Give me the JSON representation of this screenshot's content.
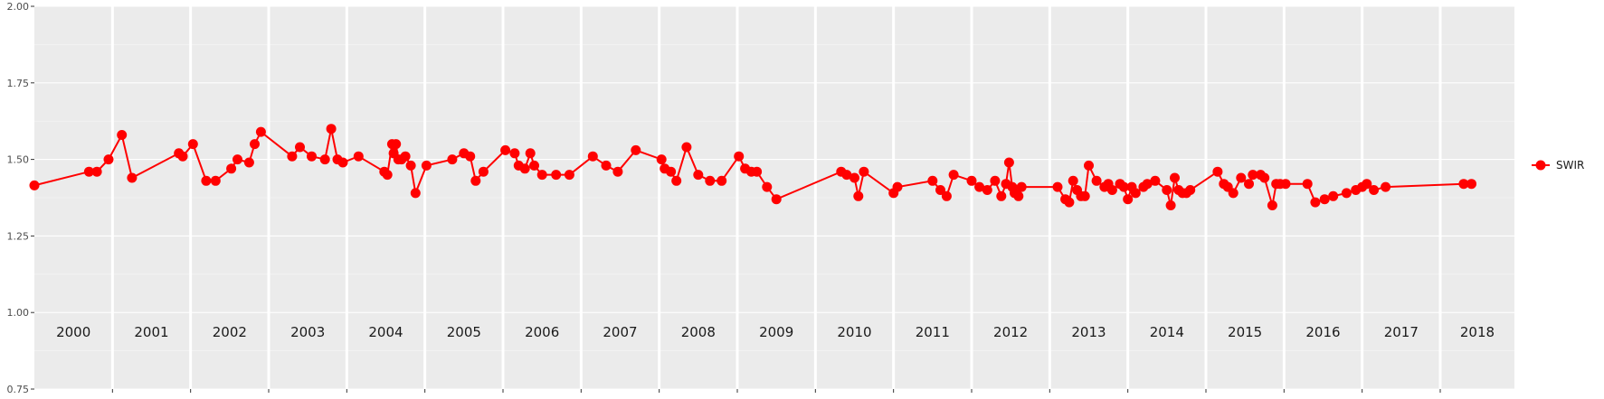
{
  "chart_data": {
    "type": "line",
    "title": "",
    "xlabel": "",
    "ylabel": "",
    "ylim": [
      0.75,
      2.0
    ],
    "xlim": [
      2000.0,
      2018.95
    ],
    "y_ticks": [
      "0.75",
      "1.00",
      "1.25",
      "1.50",
      "1.75",
      "2.00"
    ],
    "year_labels": [
      "2000",
      "2001",
      "2002",
      "2003",
      "2004",
      "2005",
      "2006",
      "2007",
      "2008",
      "2009",
      "2010",
      "2011",
      "2012",
      "2013",
      "2014",
      "2015",
      "2016",
      "2017",
      "2018"
    ],
    "grid": true,
    "legend_position": "right",
    "series": [
      {
        "name": "SWIR",
        "color": "#ff0000",
        "x": [
          2000.0,
          2000.7,
          2000.8,
          2000.95,
          2001.12,
          2001.25,
          2001.85,
          2001.9,
          2002.03,
          2002.2,
          2002.32,
          2002.52,
          2002.6,
          2002.75,
          2002.82,
          2002.9,
          2003.3,
          2003.4,
          2003.55,
          2003.72,
          2003.8,
          2003.88,
          2003.95,
          2004.15,
          2004.48,
          2004.52,
          2004.58,
          2004.6,
          2004.63,
          2004.66,
          2004.7,
          2004.75,
          2004.82,
          2004.88,
          2005.02,
          2005.35,
          2005.5,
          2005.58,
          2005.65,
          2005.75,
          2006.03,
          2006.15,
          2006.2,
          2006.28,
          2006.35,
          2006.4,
          2006.5,
          2006.68,
          2006.85,
          2007.15,
          2007.32,
          2007.47,
          2007.7,
          2008.03,
          2008.07,
          2008.15,
          2008.22,
          2008.35,
          2008.5,
          2008.65,
          2008.8,
          2009.02,
          2009.1,
          2009.18,
          2009.25,
          2009.38,
          2009.5,
          2010.33,
          2010.4,
          2010.5,
          2010.55,
          2010.62,
          2011.0,
          2011.05,
          2011.5,
          2011.6,
          2011.68,
          2011.77,
          2012.0,
          2012.1,
          2012.2,
          2012.3,
          2012.38,
          2012.44,
          2012.48,
          2012.52,
          2012.55,
          2012.6,
          2012.64,
          2013.1,
          2013.2,
          2013.25,
          2013.3,
          2013.35,
          2013.4,
          2013.45,
          2013.5,
          2013.6,
          2013.7,
          2013.75,
          2013.8,
          2013.9,
          2013.95,
          2014.0,
          2014.05,
          2014.1,
          2014.2,
          2014.25,
          2014.35,
          2014.5,
          2014.55,
          2014.6,
          2014.65,
          2014.7,
          2014.75,
          2014.8,
          2015.15,
          2015.23,
          2015.28,
          2015.35,
          2015.45,
          2015.55,
          2015.6,
          2015.7,
          2015.75,
          2015.85,
          2015.9,
          2015.95,
          2016.02,
          2016.3,
          2016.4,
          2016.52,
          2016.63,
          2016.8,
          2016.92,
          2017.0,
          2017.06,
          2017.15,
          2017.3,
          2018.3,
          2018.4
        ],
        "values": [
          1.415,
          1.46,
          1.46,
          1.5,
          1.58,
          1.44,
          1.52,
          1.51,
          1.55,
          1.43,
          1.43,
          1.47,
          1.5,
          1.49,
          1.55,
          1.59,
          1.51,
          1.54,
          1.51,
          1.5,
          1.6,
          1.5,
          1.49,
          1.51,
          1.46,
          1.45,
          1.55,
          1.52,
          1.55,
          1.5,
          1.5,
          1.51,
          1.48,
          1.39,
          1.48,
          1.5,
          1.52,
          1.51,
          1.43,
          1.46,
          1.53,
          1.52,
          1.48,
          1.47,
          1.52,
          1.48,
          1.45,
          1.45,
          1.45,
          1.51,
          1.48,
          1.46,
          1.53,
          1.5,
          1.47,
          1.46,
          1.43,
          1.54,
          1.45,
          1.43,
          1.43,
          1.51,
          1.47,
          1.46,
          1.46,
          1.41,
          1.37,
          1.46,
          1.45,
          1.44,
          1.38,
          1.46,
          1.39,
          1.41,
          1.43,
          1.4,
          1.38,
          1.45,
          1.43,
          1.41,
          1.4,
          1.43,
          1.38,
          1.42,
          1.49,
          1.41,
          1.39,
          1.38,
          1.41,
          1.41,
          1.37,
          1.36,
          1.43,
          1.4,
          1.38,
          1.38,
          1.48,
          1.43,
          1.41,
          1.42,
          1.4,
          1.42,
          1.41,
          1.37,
          1.41,
          1.39,
          1.41,
          1.42,
          1.43,
          1.4,
          1.35,
          1.44,
          1.4,
          1.39,
          1.39,
          1.4,
          1.46,
          1.42,
          1.41,
          1.39,
          1.44,
          1.42,
          1.45,
          1.45,
          1.44,
          1.35,
          1.42,
          1.42,
          1.42,
          1.42,
          1.36,
          1.37,
          1.38,
          1.39,
          1.4,
          1.41,
          1.42,
          1.4,
          1.41,
          1.42,
          1.42
        ],
        "note_unused": ""
      }
    ]
  }
}
